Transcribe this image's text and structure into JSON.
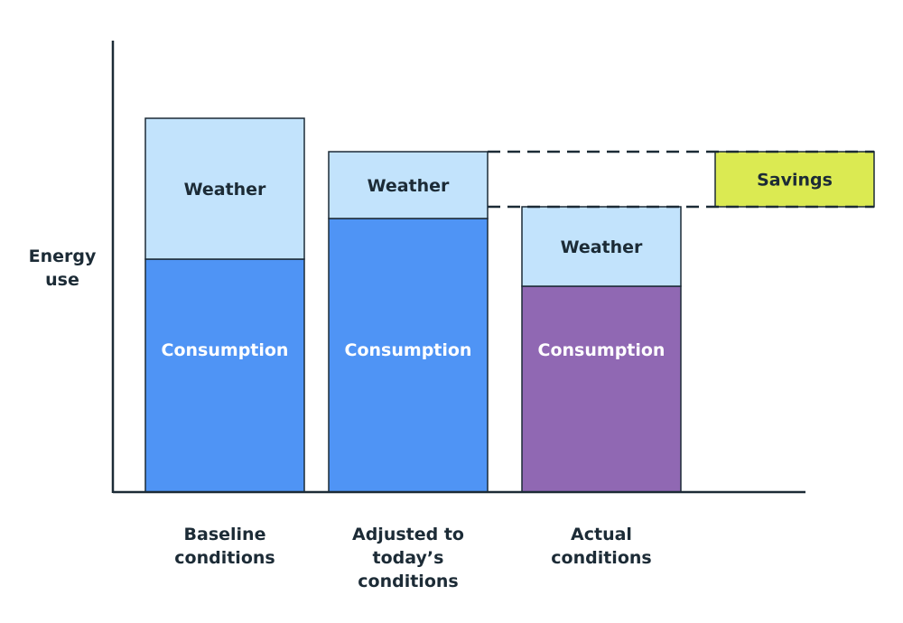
{
  "chart_data": {
    "type": "bar",
    "stacked": true,
    "ylabel": [
      "Energy",
      "use"
    ],
    "categories": [
      [
        "Baseline",
        "conditions"
      ],
      [
        "Adjusted to",
        "today’s",
        "conditions"
      ],
      [
        "Actual",
        "conditions"
      ]
    ],
    "series": [
      {
        "name": "Consumption",
        "values": [
          258,
          303,
          228
        ],
        "colors": [
          "#4f94f5",
          "#4f94f5",
          "#9068b3"
        ],
        "label_color": "#ffffff"
      },
      {
        "name": "Weather",
        "values": [
          156,
          74,
          88
        ],
        "colors": [
          "#c2e3fc",
          "#c2e3fc",
          "#c2e3fc"
        ],
        "label_color": "#1c2b36"
      }
    ],
    "ylim": [
      0,
      500
    ],
    "grid": false,
    "annotation": {
      "label": "Savings",
      "from_category": 1,
      "to_category": 2,
      "color": "#dbea52"
    }
  }
}
